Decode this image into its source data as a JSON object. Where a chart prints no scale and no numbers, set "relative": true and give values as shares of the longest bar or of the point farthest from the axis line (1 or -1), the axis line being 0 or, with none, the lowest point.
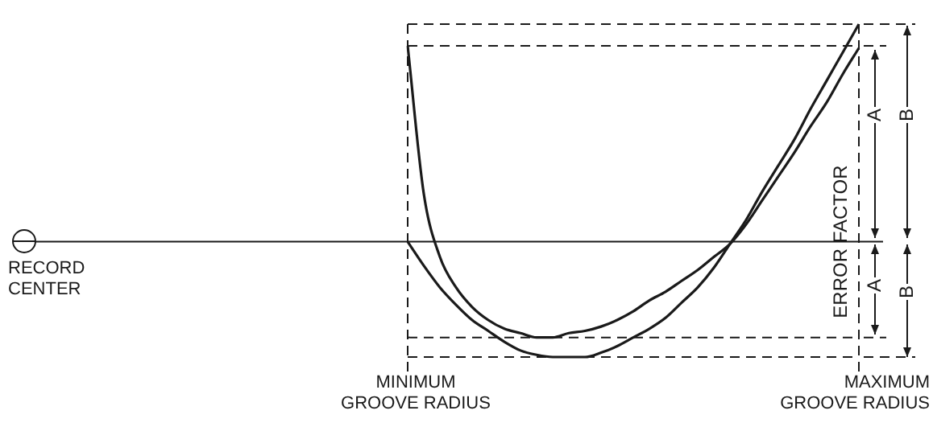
{
  "chart_data": {
    "type": "line",
    "relative": true,
    "ylabel": "ERROR FACTOR",
    "categories": [
      null,
      null,
      null,
      null,
      null,
      null,
      null,
      null,
      null,
      null,
      null,
      null,
      null,
      null,
      null,
      null,
      null,
      null,
      null,
      null,
      null,
      null,
      null,
      null,
      null,
      null,
      null,
      null,
      null
    ],
    "series": [
      {
        "color": "#1a1a1a",
        "values": [
          0.9,
          0.22,
          -0.07,
          -0.21,
          -0.3,
          -0.36,
          -0.4,
          -0.42,
          -0.44,
          -0.44,
          -0.42,
          -0.41,
          -0.39,
          -0.36,
          -0.32,
          -0.27,
          -0.23,
          -0.18,
          -0.13,
          -0.07,
          -0.01,
          0.08,
          0.19,
          0.3,
          0.41,
          0.53,
          0.64,
          0.77,
          0.89
        ]
      },
      {
        "color": "#1a1a1a",
        "values": [
          0,
          -0.11,
          -0.21,
          -0.29,
          -0.36,
          -0.41,
          -0.46,
          -0.5,
          -0.52,
          -0.53,
          -0.53,
          -0.53,
          -0.51,
          -0.48,
          -0.44,
          -0.4,
          -0.35,
          -0.28,
          -0.21,
          -0.12,
          -0.01,
          0.1,
          0.23,
          0.35,
          0.47,
          0.61,
          0.74,
          0.87,
          1
        ]
      }
    ],
    "ref_lines": [
      {
        "axis": "y",
        "value": 1,
        "color": "#1a1a1a",
        "line_style": "dashed"
      },
      {
        "axis": "y",
        "value": 0.9,
        "color": "#1a1a1a",
        "line_style": "dashed"
      },
      {
        "axis": "y",
        "value": -0.44,
        "color": "#1a1a1a",
        "line_style": "dashed"
      },
      {
        "axis": "y",
        "value": -0.53,
        "color": "#1a1a1a",
        "line_style": "dashed"
      }
    ],
    "annotations": [
      "RECORD CENTER",
      "MINIMUM GROOVE RADIUS",
      "MAXIMUM GROOVE RADIUS",
      "A",
      "A",
      "B",
      "B"
    ],
    "marker": "none",
    "line_style": "solid",
    "grid": false,
    "legend": false
  }
}
